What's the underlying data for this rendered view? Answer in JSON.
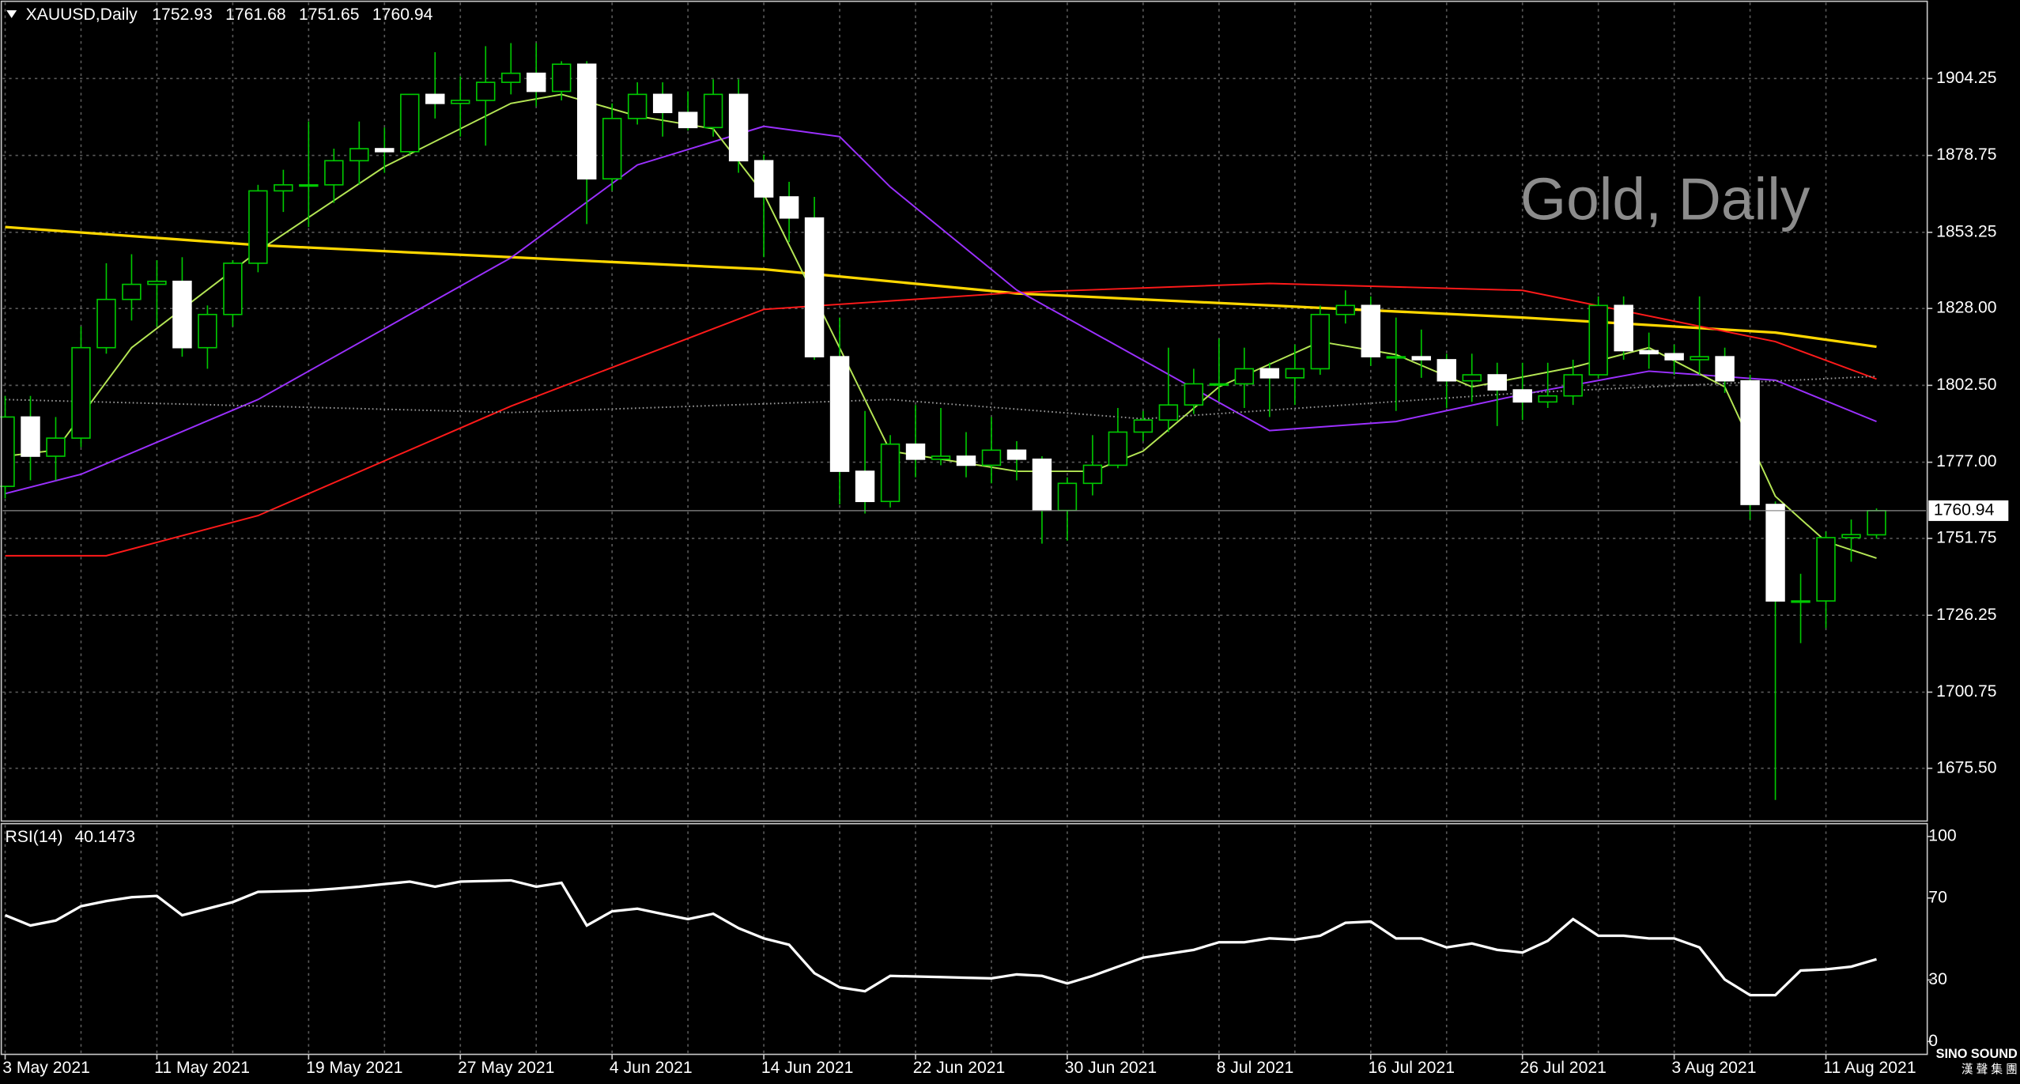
{
  "chart_data": [
    {
      "type": "candlestick",
      "title": "Gold, Daily",
      "symbol": "XAUUSD,Daily",
      "categories": [
        "3 May 2021",
        null,
        null,
        null,
        null,
        null,
        "11 May 2021",
        null,
        null,
        null,
        null,
        null,
        "19 May 2021",
        null,
        null,
        null,
        null,
        null,
        "27 May 2021",
        null,
        null,
        null,
        null,
        null,
        "4 Jun 2021",
        null,
        null,
        null,
        null,
        null,
        "14 Jun 2021",
        null,
        null,
        null,
        null,
        null,
        "22 Jun 2021",
        null,
        null,
        null,
        null,
        null,
        "30 Jun 2021",
        null,
        null,
        null,
        null,
        null,
        "8 Jul 2021",
        null,
        null,
        null,
        null,
        null,
        "16 Jul 2021",
        null,
        null,
        null,
        null,
        null,
        "26 Jul 2021",
        null,
        null,
        null,
        null,
        null,
        "3 Aug 2021",
        null,
        null,
        null,
        null,
        null,
        "11 Aug 2021",
        null,
        null
      ],
      "open": [
        1769,
        1792,
        1779,
        1785,
        1815,
        1831,
        1836,
        1837,
        1815,
        1826,
        1843,
        1867,
        1869,
        1869,
        1877,
        1881,
        1880,
        1899,
        1896,
        1897,
        1903,
        1906,
        1900,
        1909,
        1871,
        1891,
        1899,
        1893,
        1888,
        1899,
        1877,
        1865,
        1858,
        1812,
        1774,
        1764,
        1783,
        1778,
        1779,
        1776,
        1781,
        1778,
        1761,
        1770,
        1776,
        1787,
        1791,
        1796,
        1803,
        1803,
        1808,
        1805,
        1808,
        1826,
        1829,
        1812,
        1812,
        1811,
        1804,
        1806,
        1801,
        1797,
        1799,
        1806,
        1829,
        1814,
        1813,
        1811,
        1812,
        1804,
        1763,
        1731,
        1731,
        1752,
        1752.93
      ],
      "high": [
        1799,
        1799,
        1792,
        1822,
        1843,
        1846,
        1844,
        1845,
        1829,
        1844,
        1869,
        1874,
        1890,
        1881,
        1890,
        1888,
        1899,
        1913,
        1905,
        1915,
        1916,
        1916,
        1910,
        1910,
        1896,
        1903,
        1903,
        1900,
        1904,
        1904,
        1879,
        1870,
        1865,
        1825,
        1794,
        1786,
        1796,
        1795,
        1787,
        1792,
        1784,
        1779,
        1772,
        1786,
        1795,
        1794,
        1815,
        1808,
        1818,
        1815,
        1810,
        1816,
        1829,
        1834,
        1832,
        1825,
        1821,
        1813,
        1813,
        1810,
        1810,
        1810,
        1811,
        1832,
        1832,
        1820,
        1816,
        1832,
        1815,
        1806,
        1764,
        1740,
        1754,
        1758,
        1761.68
      ],
      "low": [
        1765,
        1771,
        1771,
        1782,
        1813,
        1824,
        1822,
        1812,
        1808,
        1822,
        1840,
        1860,
        1855,
        1863,
        1869,
        1873,
        1879,
        1891,
        1885,
        1882,
        1899,
        1895,
        1897,
        1856,
        1867,
        1889,
        1885,
        1887,
        1885,
        1873,
        1845,
        1850,
        1811,
        1763,
        1760,
        1762,
        1772,
        1776,
        1772,
        1770,
        1771,
        1750,
        1751,
        1766,
        1775,
        1784,
        1787,
        1793,
        1797,
        1795,
        1792,
        1796,
        1806,
        1823,
        1809,
        1794,
        1805,
        1795,
        1797,
        1789,
        1791,
        1795,
        1796,
        1805,
        1811,
        1808,
        1806,
        1806,
        1800,
        1758,
        1665,
        1717,
        1722,
        1744,
        1751.65
      ],
      "close": [
        1792,
        1779,
        1785,
        1815,
        1831,
        1836,
        1837,
        1815,
        1826,
        1843,
        1867,
        1869,
        1869,
        1877,
        1881,
        1880,
        1899,
        1896,
        1897,
        1903,
        1906,
        1900,
        1909,
        1871,
        1891,
        1899,
        1893,
        1888,
        1899,
        1877,
        1865,
        1858,
        1812,
        1774,
        1764,
        1783,
        1778,
        1779,
        1776,
        1781,
        1778,
        1761,
        1770,
        1776,
        1787,
        1791,
        1796,
        1803,
        1803,
        1808,
        1805,
        1808,
        1826,
        1829,
        1812,
        1812,
        1811,
        1804,
        1806,
        1801,
        1797,
        1799,
        1806,
        1829,
        1814,
        1813,
        1811,
        1812,
        1804,
        1763,
        1731,
        1731,
        1752,
        1753,
        1760.94
      ],
      "bull_color": "#000000",
      "bear_color": "#ffffff",
      "wick_color": "#00c800",
      "lines": [
        {
          "color": "#ffd700",
          "x": [
            0,
            10,
            20,
            30,
            40,
            50,
            60,
            70,
            74
          ],
          "values": [
            1855,
            1849,
            1845,
            1841,
            1833,
            1829,
            1825,
            1820,
            1815.3
          ]
        },
        {
          "color": "#ff1a1a",
          "x": [
            0,
            4,
            10,
            20,
            30,
            40,
            50,
            60,
            70,
            74
          ],
          "values": [
            1746,
            1746,
            1759.3,
            1795.6,
            1827.7,
            1833.3,
            1836.3,
            1834,
            1817,
            1804.6
          ]
        },
        {
          "color": "#9b30ff",
          "x": [
            0,
            3,
            10,
            20,
            25,
            30,
            33,
            35,
            40,
            50,
            55,
            60,
            65,
            70,
            74
          ],
          "values": [
            1766.6,
            1773,
            1797.8,
            1844.8,
            1875.6,
            1888.4,
            1885,
            1868.3,
            1834.1,
            1787.5,
            1790.5,
            1799.5,
            1807.2,
            1804.2,
            1790.5
          ]
        },
        {
          "color": "#b5e655",
          "x": [
            0,
            2,
            5,
            10,
            15,
            20,
            22,
            25,
            28,
            30,
            32,
            35,
            40,
            43,
            45,
            48,
            52,
            55,
            58,
            62,
            65,
            68,
            70,
            72,
            74
          ],
          "values": [
            1779,
            1781,
            1815,
            1847,
            1875,
            1896,
            1899,
            1891.8,
            1887.6,
            1866,
            1832,
            1780.7,
            1774,
            1774,
            1780.7,
            1802,
            1817,
            1812.7,
            1802,
            1808.5,
            1815,
            1802,
            1765.7,
            1750.7,
            1745.2
          ]
        },
        {
          "color": "#9a9a9a",
          "dashed": true,
          "x": [
            0,
            20,
            35,
            45,
            60,
            74
          ],
          "values": [
            1797.8,
            1793.5,
            1797.8,
            1791.4,
            1800,
            1805.5
          ]
        }
      ],
      "ylim": [
        1658,
        1930.3
      ],
      "yticks": [
        1904.25,
        1878.75,
        1853.25,
        {
          "value": 1828,
          "label": "1828.00"
        },
        {
          "value": 1802.5,
          "label": "1802.50"
        },
        {
          "value": 1777,
          "label": "1777.00"
        },
        1751.75,
        1726.25,
        1700.75,
        {
          "value": 1675.5,
          "label": "1675.50"
        }
      ],
      "grid": true
    },
    {
      "type": "line",
      "title": "RSI(14)",
      "color": "#ffffff",
      "values": [
        61.6,
        56.6,
        59,
        66,
        68.5,
        70.4,
        71,
        61.6,
        64.8,
        68,
        73,
        73.3,
        73.6,
        74.5,
        75.5,
        76.8,
        78,
        75.5,
        78,
        78.3,
        78.6,
        75.5,
        77.4,
        56.6,
        63.5,
        64.8,
        62.2,
        59.7,
        62.3,
        55.3,
        50.3,
        47.2,
        33.3,
        26.4,
        24.5,
        32,
        31.7,
        31.4,
        31.1,
        30.8,
        32.7,
        32,
        28.3,
        32,
        36.5,
        40.9,
        42.8,
        44.7,
        48.4,
        48.4,
        50.3,
        49.7,
        51.6,
        57.9,
        58.5,
        50.3,
        50.3,
        45.9,
        47.8,
        44.7,
        43.4,
        49.1,
        59.7,
        51.6,
        51.6,
        50.3,
        50.3,
        45.9,
        30.2,
        22.6,
        22.6,
        34.6,
        35.2,
        36.5,
        40.1473
      ],
      "ylim": [
        0,
        100
      ],
      "yticks": [
        100,
        70,
        30,
        0
      ]
    }
  ],
  "logo": {
    "name": "SINO SOUND",
    "subtitle": "漢 聲 集 團"
  }
}
